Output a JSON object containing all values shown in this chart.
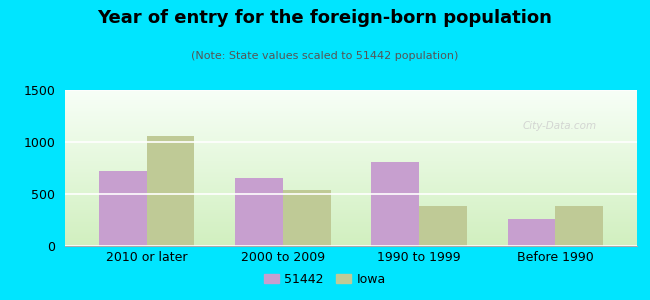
{
  "title": "Year of entry for the foreign-born population",
  "subtitle": "(Note: State values scaled to 51442 population)",
  "categories": [
    "2010 or later",
    "2000 to 2009",
    "1990 to 1999",
    "Before 1990"
  ],
  "series_51442": [
    720,
    650,
    810,
    255
  ],
  "series_iowa": [
    1060,
    535,
    380,
    380
  ],
  "color_51442": "#c79fcf",
  "color_iowa": "#bfca96",
  "background_outer": "#00e5ff",
  "background_chart_bottom": "#d6efc0",
  "background_chart_top": "#f5fff5",
  "ylim": [
    0,
    1500
  ],
  "yticks": [
    0,
    500,
    1000,
    1500
  ],
  "legend_label_51442": "51442",
  "legend_label_iowa": "Iowa",
  "bar_width": 0.35,
  "watermark": "City-Data.com"
}
